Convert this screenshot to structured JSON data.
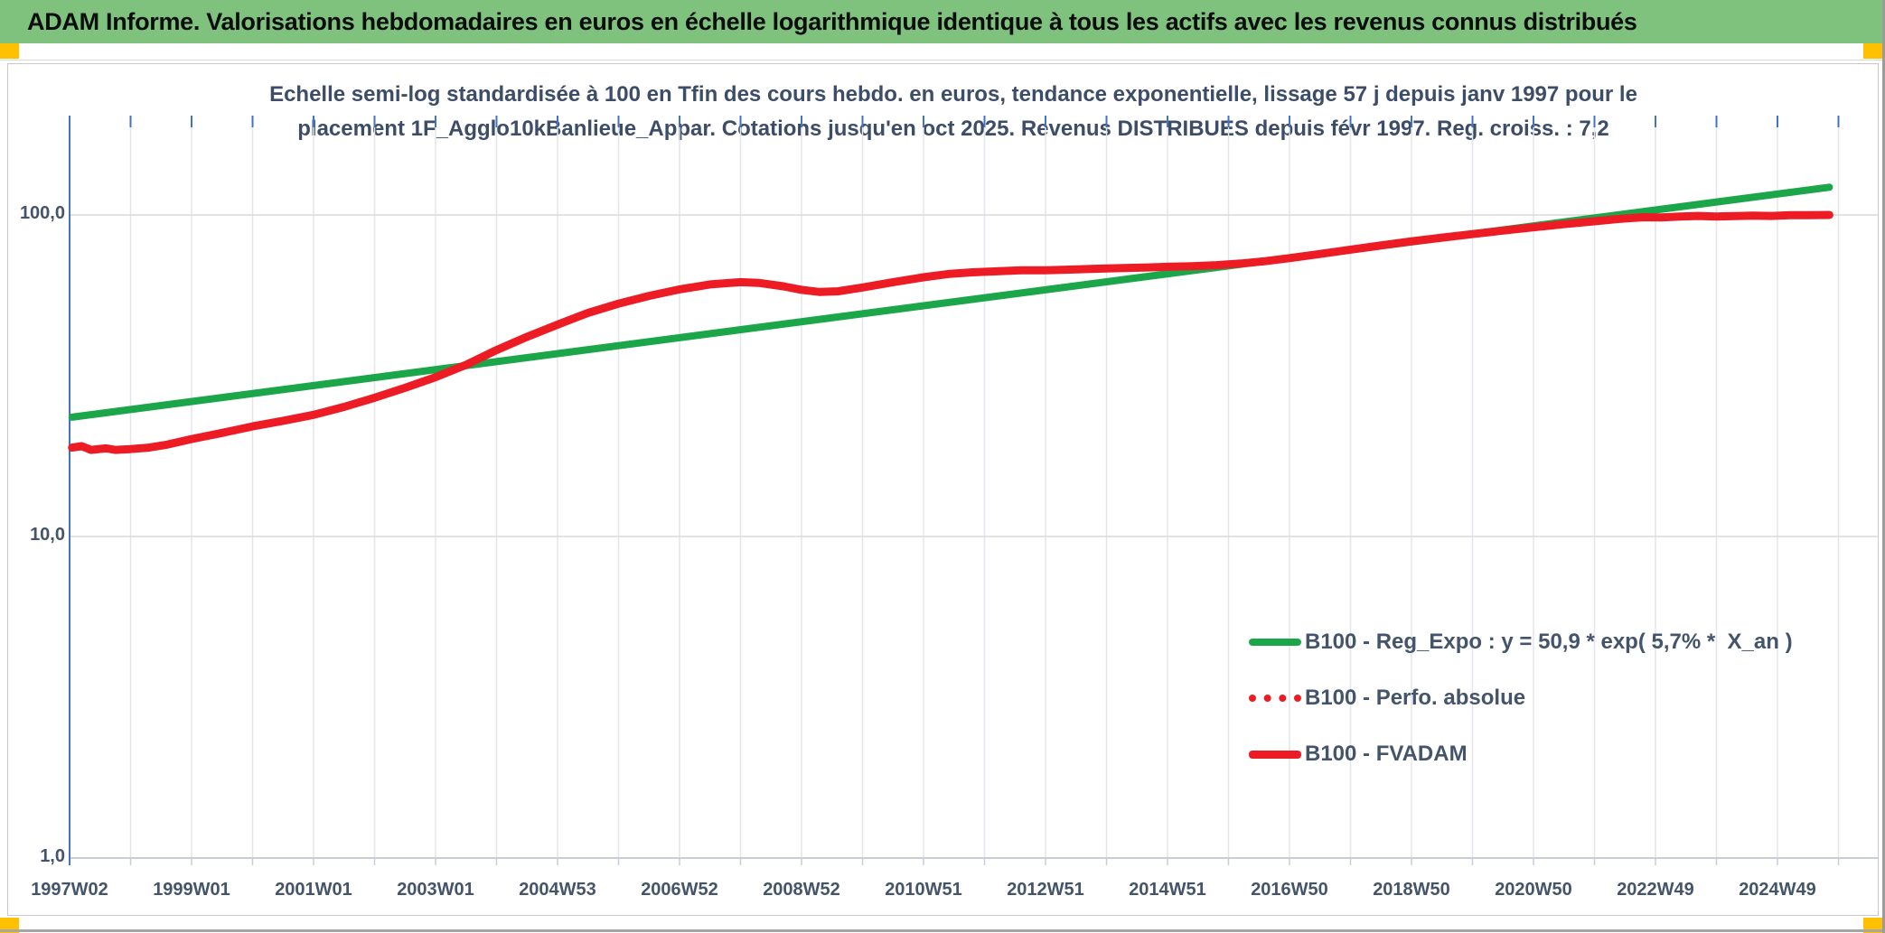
{
  "banner": {
    "title": "ADAM Informe. Valorisations hebdomadaires en euros en échelle logarithmique identique à tous les actifs avec les revenus connus distribués",
    "bg_color": "#7EC27E",
    "corner_cell_color": "#FFC000"
  },
  "chart": {
    "title_line1": "Echelle semi-log standardisée à 100 en Tfin des cours hebdo. en euros, tendance exponentielle, lissage 57 j depuis janv 1997 pour le",
    "title_line2": "placement 1F_Agglo10kBanlieue_Appar. Cotations jusqu'en oct 2025. Revenus DISTRIBUES depuis févr 1997. Reg. croiss. : 7,2",
    "text_color": "#44546A",
    "axis_line_color": "#4472C4"
  },
  "chart_data": {
    "type": "line",
    "title": "Echelle semi-log standardisée à 100 en Tfin des cours hebdo. en euros, tendance exponentielle, lissage 57 j depuis janv 1997 pour le placement 1F_Agglo10kBanlieue_Appar. Cotations jusqu'en oct 2025. Revenus DISTRIBUES depuis févr 1997. Reg. croiss. : 7,2",
    "y_scale": "log",
    "ylim": [
      1,
      200
    ],
    "x_range_years": [
      1997.0,
      2025.85
    ],
    "grid": "vertical yearly + horizontal decades",
    "legend_position": "lower-right-inside",
    "y_tick_labels": [
      "100,0",
      "10,0",
      "1,0"
    ],
    "y_tick_values": [
      100,
      10,
      1
    ],
    "x_tick_labels": [
      "1997W02",
      "1999W01",
      "2001W01",
      "2003W01",
      "2004W53",
      "2006W52",
      "2008W52",
      "2010W51",
      "2012W51",
      "2014W51",
      "2016W50",
      "2018W50",
      "2020W50",
      "2022W49",
      "2024W49"
    ],
    "series": [
      {
        "name": "B100 - Reg_Expo : y = 50,9 * exp( 5,7% *  X_an )",
        "color": "#1CA64A",
        "style": "solid",
        "line_width": 8,
        "x": [
          1997.04,
          2025.85
        ],
        "values": [
          23.5,
          122
        ]
      },
      {
        "name": "B100 - Perfo. absolue",
        "color": "#ED1C24",
        "style": "dotted",
        "line_width": 6,
        "note": "confondue avec B100 - FVADAM (masquée sous la courbe rouge pleine)",
        "x": [],
        "values": []
      },
      {
        "name": "B100 - FVADAM",
        "color": "#ED1C24",
        "style": "solid",
        "line_width": 9,
        "x": [
          1997.04,
          1997.2,
          1997.35,
          1997.6,
          1997.75,
          1998.0,
          1998.3,
          1998.6,
          1999.0,
          1999.5,
          2000.0,
          2000.5,
          2001.0,
          2001.5,
          2002.0,
          2002.5,
          2003.0,
          2003.5,
          2004.0,
          2004.5,
          2005.0,
          2005.5,
          2006.0,
          2006.5,
          2007.0,
          2007.5,
          2008.0,
          2008.3,
          2008.7,
          2009.0,
          2009.3,
          2009.6,
          2010.0,
          2010.5,
          2011.0,
          2011.4,
          2011.8,
          2012.2,
          2012.6,
          2013.0,
          2013.4,
          2013.8,
          2014.2,
          2014.6,
          2015.0,
          2015.4,
          2015.8,
          2016.2,
          2016.6,
          2017.0,
          2017.5,
          2018.0,
          2018.5,
          2019.0,
          2019.5,
          2020.0,
          2020.5,
          2021.0,
          2021.5,
          2022.0,
          2022.4,
          2022.8,
          2023.1,
          2023.4,
          2023.7,
          2024.0,
          2024.3,
          2024.6,
          2024.9,
          2025.2,
          2025.5,
          2025.85
        ],
        "values": [
          18.9,
          19.1,
          18.6,
          18.8,
          18.6,
          18.7,
          18.9,
          19.3,
          20.1,
          21.0,
          22.0,
          22.9,
          23.9,
          25.3,
          27.0,
          29.0,
          31.3,
          34.2,
          38.0,
          41.8,
          45.6,
          49.6,
          53.0,
          56.0,
          58.7,
          60.8,
          61.8,
          61.5,
          60.0,
          58.5,
          57.6,
          57.9,
          59.5,
          61.8,
          64.0,
          65.5,
          66.3,
          66.8,
          67.3,
          67.3,
          67.6,
          68.0,
          68.3,
          68.6,
          69.0,
          69.3,
          69.8,
          70.6,
          71.8,
          73.4,
          75.6,
          78.0,
          80.4,
          82.8,
          85.0,
          87.2,
          89.4,
          91.5,
          93.6,
          95.6,
          97.2,
          98.4,
          98.2,
          98.9,
          99.3,
          98.9,
          99.2,
          99.5,
          99.3,
          99.8,
          99.9,
          100.0
        ]
      }
    ]
  }
}
